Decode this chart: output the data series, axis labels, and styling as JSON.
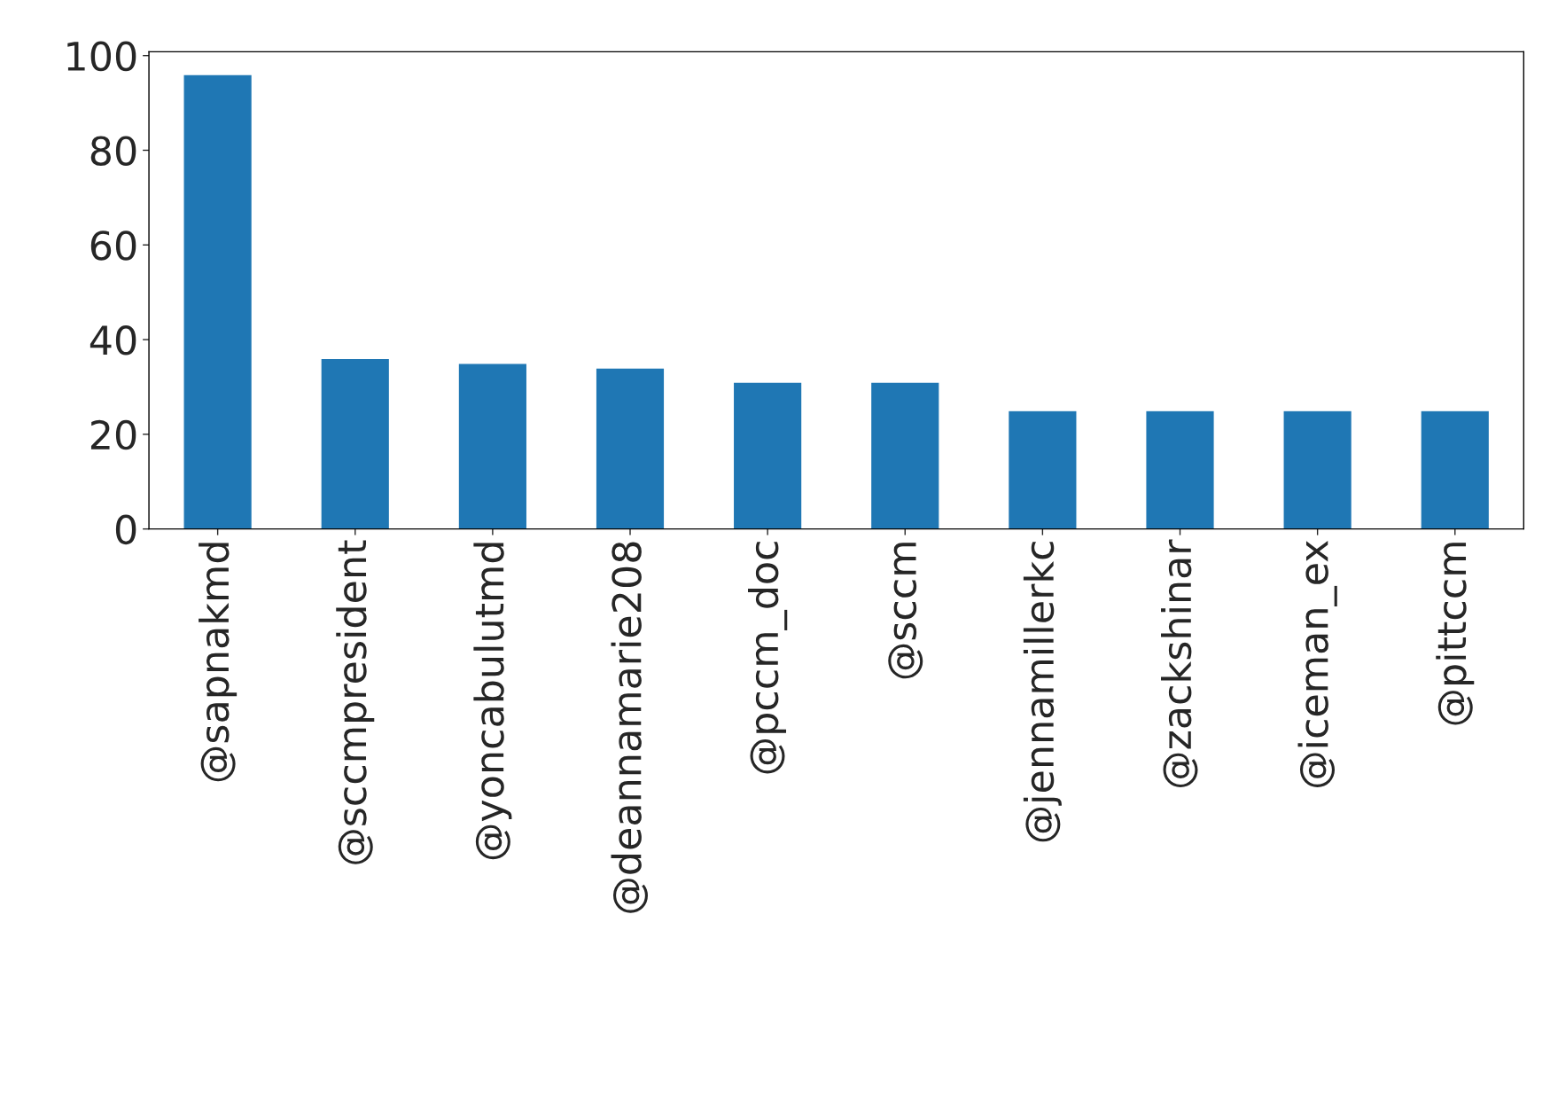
{
  "chart_data": {
    "type": "bar",
    "categories": [
      "@sapnakmd",
      "@sccmpresident",
      "@yoncabulutmd",
      "@deannamarie208",
      "@pccm_doc",
      "@sccm",
      "@jennamillerkc",
      "@zackshinar",
      "@iceman_ex",
      "@pittccm"
    ],
    "values": [
      96,
      36,
      35,
      34,
      31,
      31,
      25,
      25,
      25,
      25
    ],
    "color": "#1f77b4",
    "ylim": [
      0,
      100.8
    ],
    "yticks": [
      0,
      20,
      40,
      60,
      80,
      100
    ],
    "grid": false,
    "legend": false
  }
}
